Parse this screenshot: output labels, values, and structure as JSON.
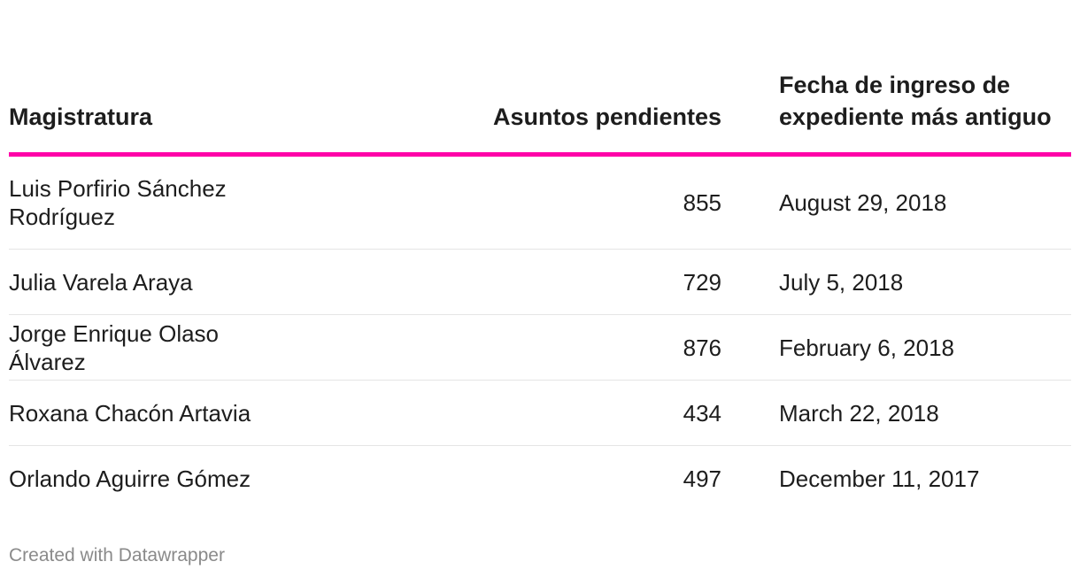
{
  "chart_data": {
    "type": "table",
    "columns": [
      "Magistratura",
      "Asuntos pendientes",
      "Fecha de ingreso de expediente más antiguo"
    ],
    "rows": [
      {
        "name": "Luis Porfirio Sánchez Rodríguez",
        "pending": 855,
        "date": "August 29, 2018"
      },
      {
        "name": "Julia Varela Araya",
        "pending": 729,
        "date": "July 5, 2018"
      },
      {
        "name": "Jorge Enrique Olaso Álvarez",
        "pending": 876,
        "date": "February 6, 2018"
      },
      {
        "name": "Roxana Chacón Artavia",
        "pending": 434,
        "date": "March 22, 2018"
      },
      {
        "name": "Orlando Aguirre Gómez",
        "pending": 497,
        "date": "December 11, 2017"
      }
    ],
    "header_rule_color": "#ff00a8"
  },
  "footer": {
    "credit": "Created with Datawrapper"
  }
}
